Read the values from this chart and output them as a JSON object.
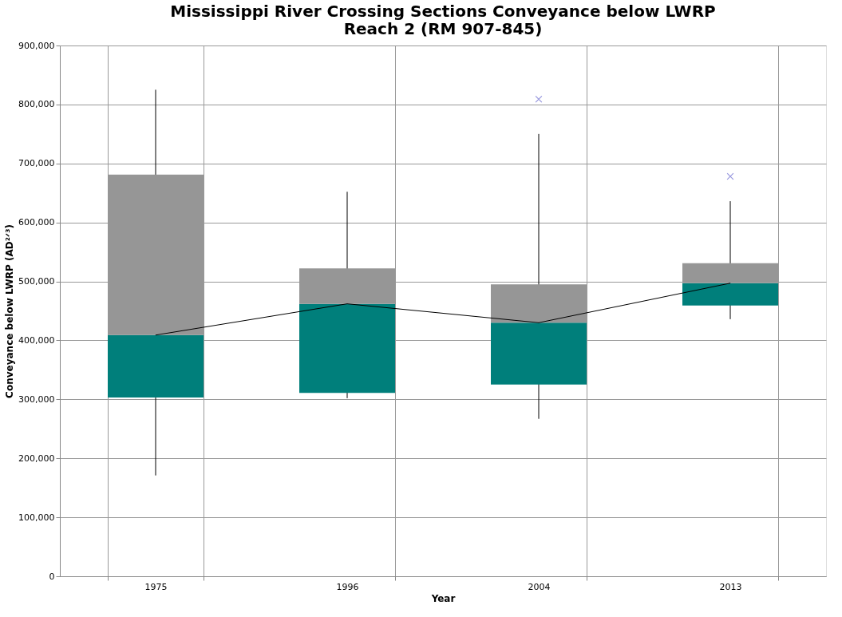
{
  "chart_data": {
    "type": "box",
    "title": [
      "Mississippi River Crossing Sections Conveyance below LWRP",
      "Reach 2 (RM 907-845)"
    ],
    "xlabel": "Year",
    "ylabel": "Conveyance below LWRP (AD²ᐟ³)",
    "categories": [
      "1975",
      "1996",
      "2004",
      "2013"
    ],
    "colors": [
      "#969696",
      "#969696",
      "#969696",
      "#969696"
    ],
    "series": [
      {
        "color": "#007f7b",
        "boxes": [
          {
            "low": 171000,
            "q1": 303000,
            "median": 409000,
            "q3": 681000,
            "high": 825000
          },
          {
            "low": 302000,
            "q1": 311000,
            "median": 462000,
            "q3": 522000,
            "high": 652000
          },
          {
            "low": 267000,
            "q1": 325000,
            "median": 430000,
            "q3": 495000,
            "high": 750000,
            "outliers": [
              809000
            ]
          },
          {
            "low": 436000,
            "q1": 459000,
            "median": 497000,
            "q3": 531000,
            "high": 636000,
            "outliers": [
              678000
            ]
          }
        ]
      },
      {
        "type": "line",
        "color": "#000000",
        "values": [
          409000,
          462000,
          430000,
          497000
        ]
      }
    ],
    "ylim": [
      0,
      900000
    ],
    "yticks": [
      0,
      {
        "value": 100000,
        "label": "100,000"
      },
      {
        "value": 200000,
        "label": "200,000"
      },
      {
        "value": 300000,
        "label": "300,000"
      },
      {
        "value": 400000,
        "label": "400,000"
      },
      {
        "value": 500000,
        "label": "500,000"
      },
      {
        "value": 600000,
        "label": "600,000"
      },
      {
        "value": 700000,
        "label": "700,000"
      },
      {
        "value": 800000,
        "label": "800,000"
      },
      {
        "value": 900000,
        "label": "900,000"
      }
    ],
    "grid": true
  }
}
